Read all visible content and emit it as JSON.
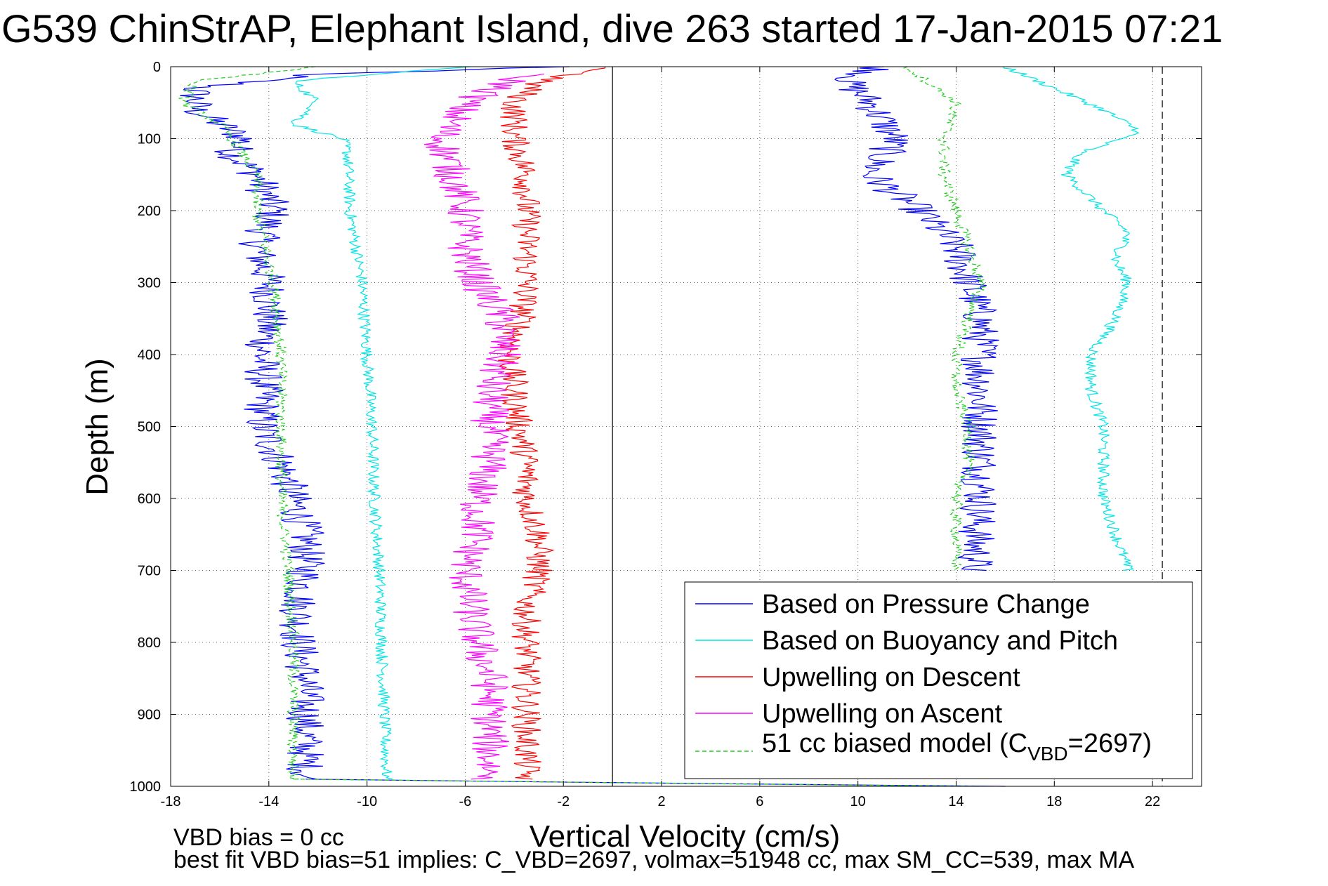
{
  "chart_data": {
    "type": "line",
    "title": "G539 ChinStrAP, Elephant Island, dive 263 started 17-Jan-2015 07:21",
    "xlabel": "Vertical Velocity (cm/s)",
    "ylabel": "Depth (m)",
    "xlim": [
      -18,
      24
    ],
    "ylim": [
      1000,
      0
    ],
    "y_reversed": true,
    "grid": true,
    "x_ticks": [
      -18,
      -14,
      -10,
      -6,
      -2,
      2,
      6,
      10,
      14,
      18,
      22
    ],
    "y_ticks": [
      0,
      100,
      200,
      300,
      400,
      500,
      600,
      700,
      800,
      900,
      1000
    ],
    "legend_position": "bottom-right",
    "reference_lines": [
      {
        "x": 0,
        "style": "solid",
        "color": "#000000"
      },
      {
        "x": 22.4,
        "style": "dashed",
        "color": "#000000"
      }
    ],
    "series": [
      {
        "name": "Based on Pressure Change",
        "color": "#0000ff",
        "style": "solid",
        "segments": [
          {
            "depth": [
              0,
              10,
              30,
              60,
              80,
              100,
              120,
              150,
              200,
              250,
              300,
              350,
              400,
              450,
              500,
              550,
              600,
              650,
              700,
              750,
              800,
              850,
              900,
              950,
              990
            ],
            "velocity": [
              -2,
              -12,
              -17,
              -17,
              -16,
              -15,
              -15.5,
              -14.5,
              -13.8,
              -14.5,
              -14,
              -14,
              -14.3,
              -14.2,
              -14.3,
              -13.5,
              -13,
              -12.5,
              -12.5,
              -12.8,
              -12.8,
              -12.5,
              -12.5,
              -12.5,
              -12.5
            ]
          },
          {
            "depth": [
              990,
              995,
              1000
            ],
            "velocity": [
              -12.5,
              0,
              16
            ]
          },
          {
            "depth": [
              0,
              20,
              50,
              100,
              150,
              200,
              250,
              300,
              350,
              400,
              450,
              500,
              550,
              600,
              650,
              700
            ],
            "velocity": [
              11,
              9.5,
              10.5,
              11.5,
              10.5,
              12.5,
              14,
              14.5,
              15,
              15,
              15,
              15,
              15,
              15,
              14.8,
              14.8
            ]
          }
        ],
        "noise": 0.8
      },
      {
        "name": "Based on Buoyancy and Pitch",
        "color": "#00e5e5",
        "style": "solid",
        "segments": [
          {
            "depth": [
              0,
              20,
              50,
              80,
              100,
              120,
              200,
              300,
              400,
              500,
              600,
              700,
              800,
              900,
              990
            ],
            "velocity": [
              -6,
              -13,
              -12,
              -13,
              -11,
              -10.8,
              -10.7,
              -10.2,
              -10,
              -9.8,
              -9.7,
              -9.5,
              -9.4,
              -9.3,
              -9.2
            ]
          },
          {
            "depth": [
              0,
              30,
              60,
              90,
              120,
              150,
              200,
              230,
              270,
              300,
              350,
              400,
              450,
              500,
              550,
              600,
              650,
              700
            ],
            "velocity": [
              16,
              18,
              20,
              21.5,
              19,
              18.5,
              20,
              21,
              20.5,
              21,
              20.5,
              19.5,
              19.5,
              20,
              20,
              20,
              20.5,
              21
            ]
          }
        ],
        "noise": 0.25
      },
      {
        "name": "Upwelling on Descent",
        "color": "#ff0000",
        "style": "solid",
        "segments": [
          {
            "depth": [
              0,
              20,
              50,
              100,
              150,
              200,
              250,
              300,
              350,
              400,
              450,
              500,
              550,
              600,
              650,
              700,
              750,
              800,
              850,
              900,
              950,
              990
            ],
            "velocity": [
              0,
              -3,
              -4,
              -4,
              -3.5,
              -3.5,
              -3.5,
              -3.5,
              -3.7,
              -4.2,
              -4,
              -3.8,
              -3.5,
              -3.5,
              -3,
              -3,
              -3.5,
              -3.5,
              -3.5,
              -3.5,
              -3.5,
              -3.5
            ]
          }
        ],
        "noise": 0.6
      },
      {
        "name": "Upwelling on Ascent",
        "color": "#ff00ff",
        "style": "solid",
        "segments": [
          {
            "depth": [
              10,
              50,
              100,
              150,
              200,
              250,
              300,
              350,
              400,
              450,
              500,
              550,
              600,
              650,
              700,
              750,
              800,
              850,
              900,
              950,
              990
            ],
            "velocity": [
              -3.5,
              -6,
              -7,
              -6.5,
              -6,
              -6,
              -5.5,
              -4.5,
              -4.5,
              -5,
              -5,
              -5,
              -5.5,
              -5.5,
              -6,
              -5.8,
              -5.5,
              -5,
              -5,
              -5,
              -5
            ]
          }
        ],
        "noise": 0.8
      },
      {
        "name": "51 cc biased model (C_VBD=2697)",
        "color": "#22cc22",
        "style": "dashed",
        "segments": [
          {
            "depth": [
              0,
              20,
              50,
              80,
              100,
              150,
              200,
              300,
              400,
              500,
              600,
              700,
              800,
              900,
              990
            ],
            "velocity": [
              -12,
              -17,
              -17.5,
              -16,
              -15.5,
              -14.5,
              -14.5,
              -13.8,
              -13.5,
              -13.5,
              -13.5,
              -13.2,
              -13,
              -13,
              -13
            ]
          },
          {
            "depth": [
              990,
              995,
              1000
            ],
            "velocity": [
              -13,
              0,
              15
            ]
          },
          {
            "depth": [
              0,
              50,
              100,
              150,
              200,
              250,
              300,
              350,
              400,
              450,
              500,
              550,
              600,
              650,
              700
            ],
            "velocity": [
              12,
              14,
              13.5,
              13.5,
              14,
              14.5,
              15,
              14.5,
              14,
              14,
              14.5,
              14.5,
              14,
              14,
              14
            ]
          }
        ],
        "noise": 0.25
      }
    ],
    "legend_entries": [
      {
        "label": "Based on Pressure Change"
      },
      {
        "label": "Based on Buoyancy and Pitch"
      },
      {
        "label": "Upwelling on Descent"
      },
      {
        "label": "Upwelling on Ascent"
      },
      {
        "label_prefix": "51 cc biased model (C",
        "label_sub": "VBD",
        "label_suffix": "=2697)"
      }
    ],
    "annotations": [
      "VBD bias = 0 cc",
      "best fit VBD bias=51 implies: C_VBD=2697, volmax=51948 cc, max SM_CC=539, max MA"
    ]
  }
}
